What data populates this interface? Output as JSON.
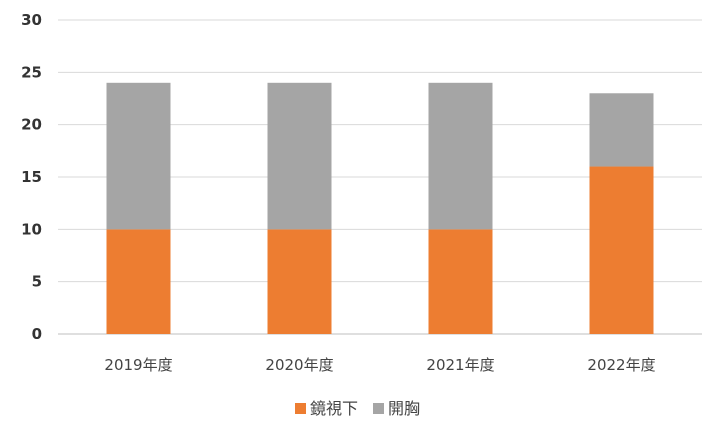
{
  "chart_data": {
    "type": "bar",
    "stacked": true,
    "categories": [
      "2019年度",
      "2020年度",
      "2021年度",
      "2022年度"
    ],
    "series": [
      {
        "name": "鏡視下",
        "values": [
          10,
          10,
          10,
          16
        ],
        "color": "#ED7D31"
      },
      {
        "name": "開胸",
        "values": [
          14,
          14,
          14,
          7
        ],
        "color": "#A5A5A5"
      }
    ],
    "ylim": [
      0,
      30
    ],
    "yticks": [
      0,
      5,
      10,
      15,
      20,
      25,
      30
    ],
    "grid": true,
    "legend_position": "bottom"
  }
}
